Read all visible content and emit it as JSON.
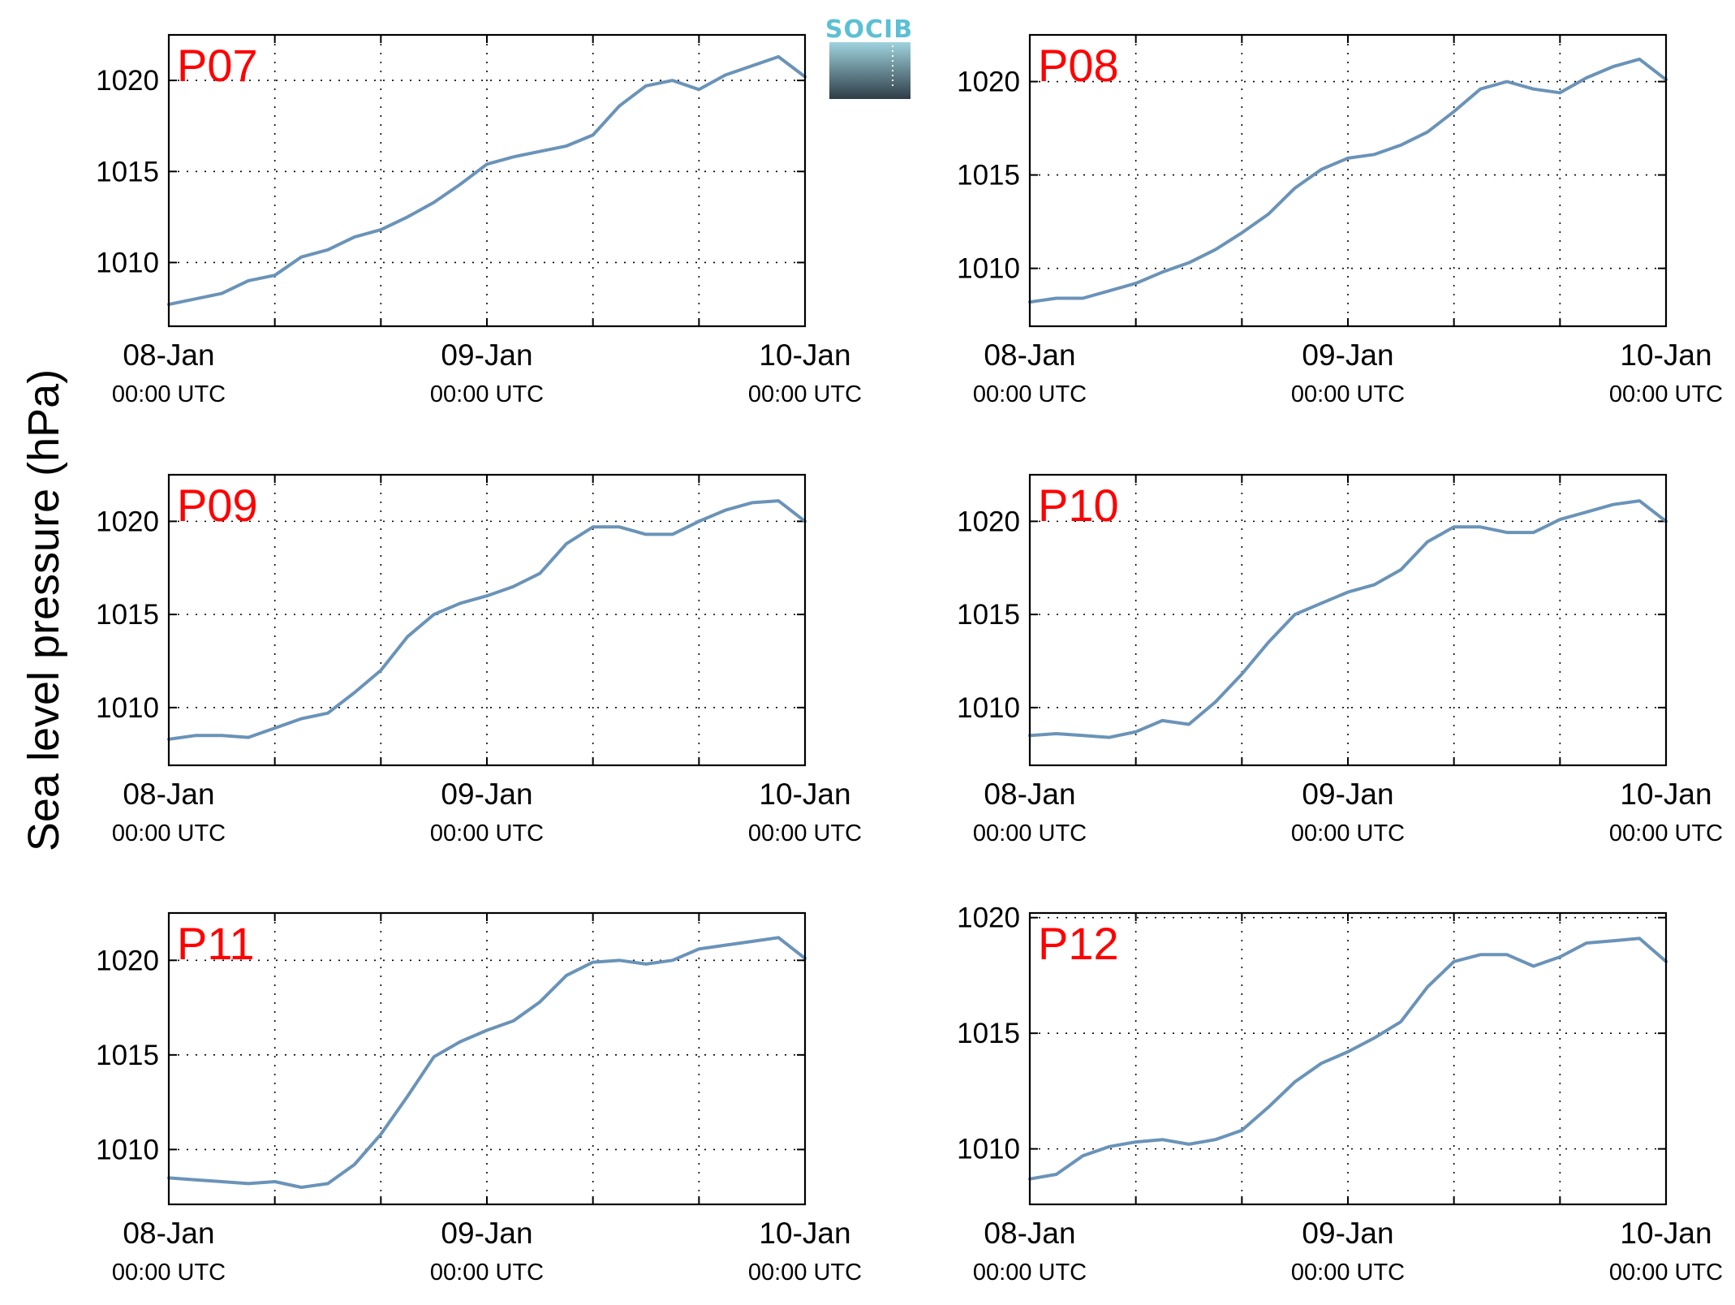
{
  "colors": {
    "series": "#6a93b8",
    "panel_title": "#ff0000",
    "logo_text": "#5bc0d3",
    "logo_top": "#9fd3de",
    "logo_bottom": "#2e3d47"
  },
  "logo": {
    "text": "SOCIB"
  },
  "chart_data": {
    "type": "line",
    "ylabel": "Sea level pressure (hPa)",
    "x_tick_main": [
      "08-Jan",
      "09-Jan",
      "10-Jan"
    ],
    "x_tick_sub": [
      "00:00 UTC",
      "00:00 UTC",
      "00:00 UTC"
    ],
    "xlim": [
      "2014-01-08T00:00",
      "2014-01-10T00:00"
    ],
    "grid": true,
    "panels": [
      {
        "title": "P07",
        "ylim": [
          1006.5,
          1022.5
        ],
        "yticks": [
          1010,
          1015,
          1020
        ],
        "x_hours": [
          0,
          2,
          4,
          6,
          8,
          10,
          12,
          14,
          16,
          18,
          20,
          22,
          24,
          26,
          28,
          30,
          32,
          34,
          36,
          38,
          40,
          42,
          44,
          46,
          48
        ],
        "values": [
          1007.7,
          1008.0,
          1008.3,
          1009.0,
          1009.3,
          1010.3,
          1010.7,
          1011.4,
          1011.8,
          1012.5,
          1013.3,
          1014.3,
          1015.4,
          1015.8,
          1016.1,
          1016.4,
          1017.0,
          1018.6,
          1019.7,
          1020.0,
          1019.5,
          1020.3,
          1020.8,
          1021.3,
          1020.2
        ]
      },
      {
        "title": "P08",
        "ylim": [
          1006.9,
          1022.5
        ],
        "yticks": [
          1010,
          1015,
          1020
        ],
        "x_hours": [
          0,
          2,
          4,
          6,
          8,
          10,
          12,
          14,
          16,
          18,
          20,
          22,
          24,
          26,
          28,
          30,
          32,
          34,
          36,
          38,
          40,
          42,
          44,
          46,
          48
        ],
        "values": [
          1008.2,
          1008.4,
          1008.4,
          1008.8,
          1009.2,
          1009.8,
          1010.3,
          1011.0,
          1011.9,
          1012.9,
          1014.3,
          1015.3,
          1015.9,
          1016.1,
          1016.6,
          1017.3,
          1018.4,
          1019.6,
          1020.0,
          1019.6,
          1019.4,
          1020.2,
          1020.8,
          1021.2,
          1020.1
        ]
      },
      {
        "title": "P09",
        "ylim": [
          1006.9,
          1022.5
        ],
        "yticks": [
          1010,
          1015,
          1020
        ],
        "x_hours": [
          0,
          2,
          4,
          6,
          8,
          10,
          12,
          14,
          16,
          18,
          20,
          22,
          24,
          26,
          28,
          30,
          32,
          34,
          36,
          38,
          40,
          42,
          44,
          46,
          48
        ],
        "values": [
          1008.3,
          1008.5,
          1008.5,
          1008.4,
          1008.9,
          1009.4,
          1009.7,
          1010.8,
          1012.0,
          1013.8,
          1015.0,
          1015.6,
          1016.0,
          1016.5,
          1017.2,
          1018.8,
          1019.7,
          1019.7,
          1019.3,
          1019.3,
          1020.0,
          1020.6,
          1021.0,
          1021.1,
          1020.0
        ]
      },
      {
        "title": "P10",
        "ylim": [
          1006.9,
          1022.5
        ],
        "yticks": [
          1010,
          1015,
          1020
        ],
        "x_hours": [
          0,
          2,
          4,
          6,
          8,
          10,
          12,
          14,
          16,
          18,
          20,
          22,
          24,
          26,
          28,
          30,
          32,
          34,
          36,
          38,
          40,
          42,
          44,
          46,
          48
        ],
        "values": [
          1008.5,
          1008.6,
          1008.5,
          1008.4,
          1008.7,
          1009.3,
          1009.1,
          1010.3,
          1011.8,
          1013.5,
          1015.0,
          1015.6,
          1016.2,
          1016.6,
          1017.4,
          1018.9,
          1019.7,
          1019.7,
          1019.4,
          1019.4,
          1020.1,
          1020.5,
          1020.9,
          1021.1,
          1020.0
        ]
      },
      {
        "title": "P11",
        "ylim": [
          1007.1,
          1022.5
        ],
        "yticks": [
          1010,
          1015,
          1020
        ],
        "x_hours": [
          0,
          2,
          4,
          6,
          8,
          10,
          12,
          14,
          16,
          18,
          20,
          22,
          24,
          26,
          28,
          30,
          32,
          34,
          36,
          38,
          40,
          42,
          44,
          46,
          48
        ],
        "values": [
          1008.5,
          1008.4,
          1008.3,
          1008.2,
          1008.3,
          1008.0,
          1008.2,
          1009.2,
          1010.8,
          1012.8,
          1014.9,
          1015.7,
          1016.3,
          1016.8,
          1017.8,
          1019.2,
          1019.9,
          1020.0,
          1019.8,
          1020.0,
          1020.6,
          1020.8,
          1021.0,
          1021.2,
          1020.1
        ]
      },
      {
        "title": "P12",
        "ylim": [
          1007.6,
          1020.2
        ],
        "yticks": [
          1010,
          1015,
          1020
        ],
        "x_hours": [
          0,
          2,
          4,
          6,
          8,
          10,
          12,
          14,
          16,
          18,
          20,
          22,
          24,
          26,
          28,
          30,
          32,
          34,
          36,
          38,
          40,
          42,
          44,
          46,
          48
        ],
        "values": [
          1008.7,
          1008.9,
          1009.7,
          1010.1,
          1010.3,
          1010.4,
          1010.2,
          1010.4,
          1010.8,
          1011.8,
          1012.9,
          1013.7,
          1014.2,
          1014.8,
          1015.5,
          1017.0,
          1018.1,
          1018.4,
          1018.4,
          1017.9,
          1018.3,
          1018.9,
          1019.0,
          1019.1,
          1018.1
        ]
      }
    ]
  }
}
